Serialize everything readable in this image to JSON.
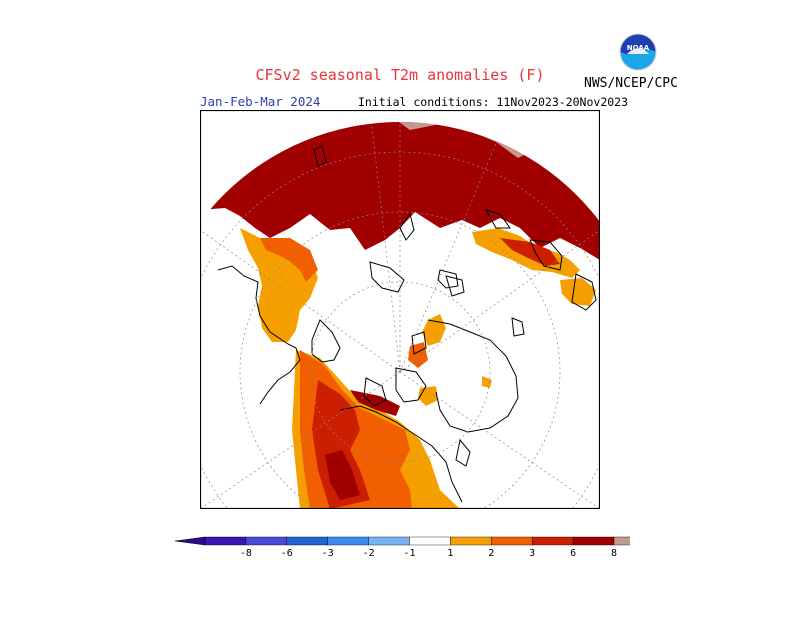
{
  "header": {
    "title": "CFSv2 seasonal T2m anomalies (F)",
    "season": "Jan-Feb-Mar 2024",
    "initial_conditions": "Initial conditions: 11Nov2023-20Nov2023",
    "agency": "NWS/NCEP/CPC",
    "logo_text": "NOAA"
  },
  "map": {
    "projection": "north-polar-stereographic",
    "anomaly_colors": {
      "1_to_2": "#f5a000",
      "2_to_3": "#f25f00",
      "3_to_6": "#cc1e00",
      "6_to_8": "#a00000",
      "gt_8": "#c49a90"
    }
  },
  "colorbar": {
    "labels": [
      "-8",
      "-6",
      "-3",
      "-2",
      "-1",
      "1",
      "2",
      "3",
      "6",
      "8"
    ],
    "colors": [
      "#3a16b4",
      "#4a4ad8",
      "#1e64d2",
      "#3c8cf0",
      "#78b4f5",
      "#ffffff",
      "#f5a000",
      "#f25f00",
      "#cc1e00",
      "#a00000",
      "#c49a90"
    ],
    "end_colors": [
      "#2a0a90",
      "#7a4a40"
    ]
  }
}
